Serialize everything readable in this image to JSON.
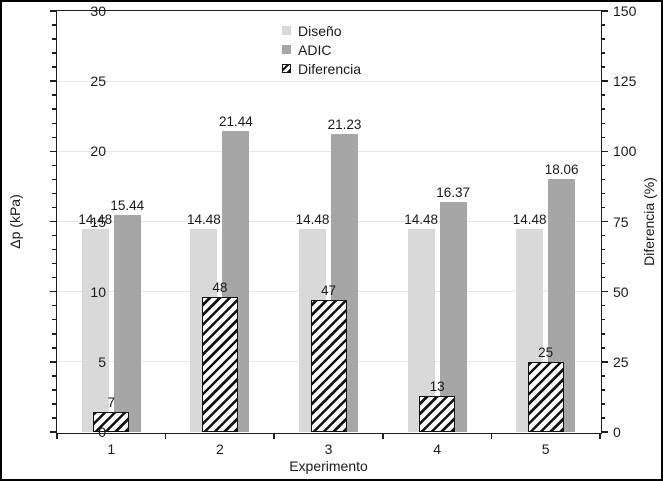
{
  "figure": {
    "background": "#ffffff",
    "border_color": "#000000",
    "text_color": "#1a1a1a",
    "axis_color": "#1f1f1f",
    "gridline_color": "#e7e7e7"
  },
  "chart_data": {
    "type": "bar",
    "title": "",
    "categories": [
      "1",
      "2",
      "3",
      "4",
      "5"
    ],
    "xlabel": "Experimento",
    "axes": {
      "left": {
        "label": "Δp (kPa)",
        "min": 0,
        "max": 30,
        "major_step": 5,
        "minor_step": 1,
        "ticks": [
          "0",
          "5",
          "10",
          "15",
          "20",
          "25",
          "30"
        ]
      },
      "right": {
        "label": "Diferencia (%)",
        "min": 0,
        "max": 150,
        "major_step": 25,
        "minor_step": 5,
        "ticks": [
          "0",
          "25",
          "50",
          "75",
          "100",
          "125",
          "150"
        ]
      }
    },
    "grid": {
      "show": true,
      "interval": 5
    },
    "series": [
      {
        "name": "Diseño",
        "axis": "left",
        "style": "solid",
        "fill": "#d9d9d9",
        "values": [
          14.48,
          14.48,
          14.48,
          14.48,
          14.48
        ],
        "labels": [
          "14.48",
          "14.48",
          "14.48",
          "14.48",
          "14.48"
        ]
      },
      {
        "name": "ADIC",
        "axis": "left",
        "style": "solid",
        "fill": "#a6a6a6",
        "values": [
          15.44,
          21.44,
          21.23,
          16.37,
          18.06
        ],
        "labels": [
          "15.44",
          "21.44",
          "21.23",
          "16.37",
          "18.06"
        ]
      },
      {
        "name": "Diferencia",
        "axis": "right",
        "style": "hatched",
        "fill": "#ffffff",
        "values": [
          7,
          48,
          47,
          13,
          25
        ],
        "labels": [
          "7",
          "48",
          "47",
          "13",
          "25"
        ]
      }
    ],
    "legend": {
      "position": "top-center",
      "entries": [
        "Diseño",
        "ADIC",
        "Diferencia"
      ]
    }
  }
}
